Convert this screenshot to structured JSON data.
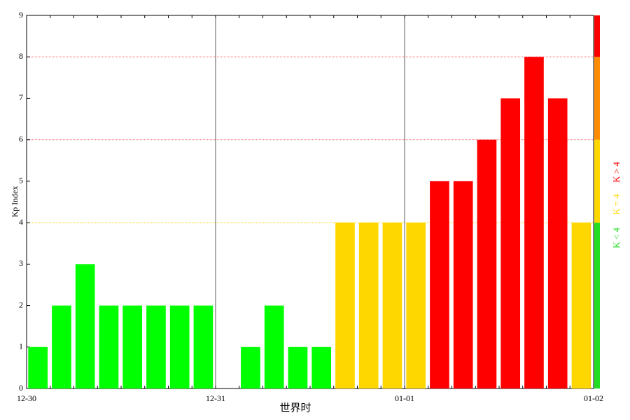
{
  "chart_data": {
    "type": "bar",
    "y_label": "Kp Index",
    "x_label": "世界时",
    "x": [
      0,
      3,
      6,
      9,
      12,
      15,
      18,
      21,
      24,
      27,
      30,
      33,
      36,
      39,
      42,
      45,
      48,
      51,
      54,
      57,
      60,
      63,
      66,
      69
    ],
    "bar_span": 3,
    "values": [
      1,
      2,
      3,
      2,
      2,
      2,
      2,
      2,
      null,
      1,
      2,
      1,
      1,
      4,
      4,
      4,
      4,
      5,
      5,
      6,
      7,
      8,
      7,
      4
    ],
    "colors": [
      "#00ff00",
      "#00ff00",
      "#00ff00",
      "#00ff00",
      "#00ff00",
      "#00ff00",
      "#00ff00",
      "#00ff00",
      null,
      "#00ff00",
      "#00ff00",
      "#00ff00",
      "#00ff00",
      "#ffd700",
      "#ffd700",
      "#ffd700",
      "#ffd700",
      "#ff0000",
      "#ff0000",
      "#ff0000",
      "#ff0000",
      "#ff0000",
      "#ff0000",
      "#ffd700"
    ],
    "xlim": [
      0,
      72
    ],
    "xticks": [
      {
        "value": 0,
        "label": "12-30"
      },
      {
        "value": 24,
        "label": "12-31"
      },
      {
        "value": 48,
        "label": "01-01"
      },
      {
        "value": 72,
        "label": "01-02"
      }
    ],
    "ylim": [
      0,
      9
    ],
    "yticks": [
      0,
      1,
      2,
      3,
      4,
      5,
      6,
      7,
      8,
      9
    ],
    "xgrid": true,
    "threshold_lines": [
      {
        "value": 4,
        "color": "#ffd700"
      },
      {
        "value": 6,
        "color": "#ff6060"
      },
      {
        "value": 8,
        "color": "#ff6060"
      }
    ],
    "scale_bands": [
      {
        "from": 0,
        "to": 4,
        "color": "#22dd22"
      },
      {
        "from": 4,
        "to": 6,
        "color": "#ffd700"
      },
      {
        "from": 6,
        "to": 8,
        "color": "#ff8c00"
      },
      {
        "from": 8,
        "to": 9,
        "color": "#ff0000"
      }
    ],
    "legend": [
      {
        "label": "K < 4",
        "color": "#22dd22"
      },
      {
        "label": "K = 4",
        "color": "#ffd700"
      },
      {
        "label": "K > 4",
        "color": "#ff0000"
      }
    ]
  }
}
